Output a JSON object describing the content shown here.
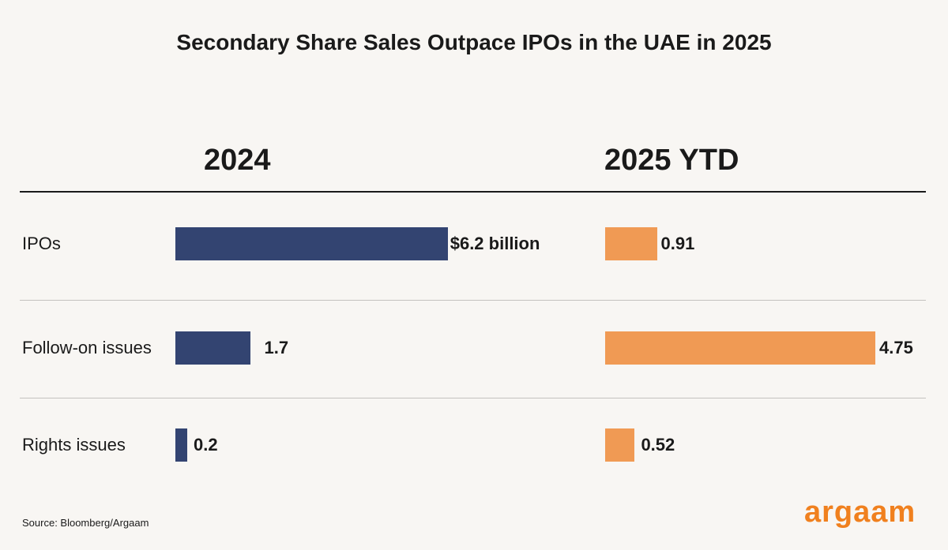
{
  "chart_data": {
    "type": "bar",
    "orientation": "horizontal",
    "title": "Secondary Share Sales Outpace IPOs in the UAE in 2025",
    "categories": [
      "IPOs",
      "Follow-on issues",
      "Rights issues"
    ],
    "series": [
      {
        "name": "2024",
        "values": [
          6.2,
          1.7,
          0.2
        ],
        "labels": [
          "$6.2 billion",
          "1.7",
          "0.2"
        ],
        "color": "#334471"
      },
      {
        "name": "2025 YTD",
        "values": [
          0.91,
          4.75,
          0.52
        ],
        "labels": [
          "0.91",
          "4.75",
          "0.52"
        ],
        "color": "#f09a54"
      }
    ],
    "grid": false
  },
  "source": "Source: Bloomberg/Argaam",
  "logo": "argaam"
}
